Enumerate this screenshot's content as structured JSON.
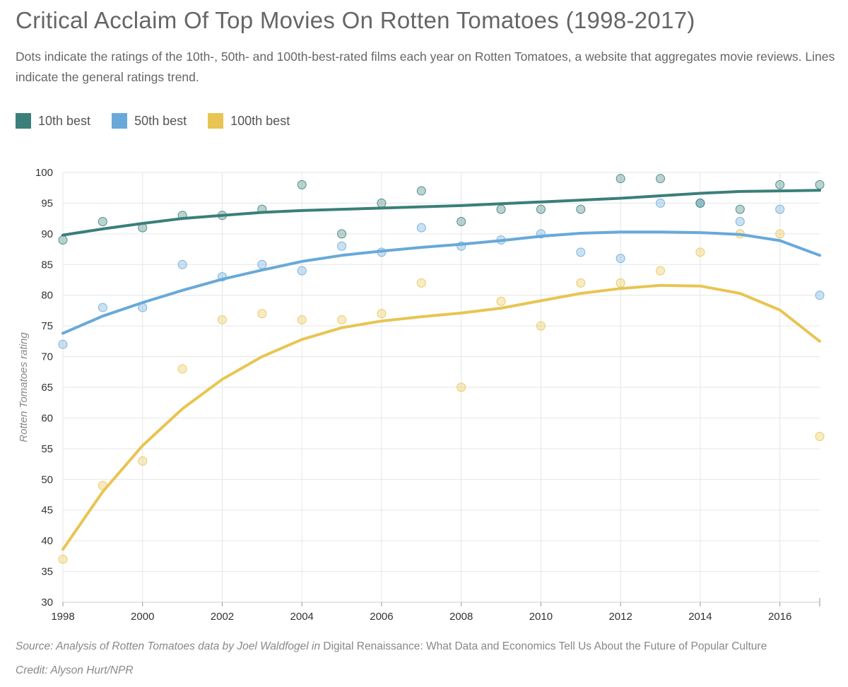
{
  "title": "Critical Acclaim Of Top Movies On Rotten Tomatoes (1998-2017)",
  "subtitle": "Dots indicate the ratings of the 10th-, 50th- and 100th-best-rated films each year on Rotten Tomatoes, a website that aggregates movie reviews. Lines indicate the general ratings trend.",
  "legend": [
    {
      "label": "10th best",
      "color": "#3a7f79"
    },
    {
      "label": "50th best",
      "color": "#68a9d9"
    },
    {
      "label": "100th best",
      "color": "#e8c553"
    }
  ],
  "source": {
    "prefix": "Source: Analysis of Rotten Tomatoes data by Joel Waldfogel in ",
    "book": "Digital Renaissance: What Data and Economics Tell Us About the Future of Popular Culture"
  },
  "credit": "Credit: Alyson Hurt/NPR",
  "chart_data": {
    "type": "scatter",
    "title": "Critical Acclaim Of Top Movies On Rotten Tomatoes (1998-2017)",
    "xlabel": "",
    "ylabel": "Rotten Tomatoes rating",
    "xlim": [
      1998,
      2017
    ],
    "ylim": [
      30,
      100
    ],
    "x_ticks": [
      1998,
      2000,
      2002,
      2004,
      2006,
      2008,
      2010,
      2012,
      2014,
      2016
    ],
    "y_ticks": [
      30,
      35,
      40,
      45,
      50,
      55,
      60,
      65,
      70,
      75,
      80,
      85,
      90,
      95,
      100
    ],
    "grid": true,
    "x": [
      1998,
      1999,
      2000,
      2001,
      2002,
      2003,
      2004,
      2005,
      2006,
      2007,
      2008,
      2009,
      2010,
      2011,
      2012,
      2013,
      2014,
      2015,
      2016,
      2017
    ],
    "series": [
      {
        "name": "10th best",
        "color": "#3a7f79",
        "values": [
          89,
          92,
          91,
          93,
          93,
          94,
          98,
          90,
          95,
          97,
          92,
          94,
          94,
          94,
          99,
          99,
          95,
          94,
          98,
          98
        ],
        "trend": [
          89.8,
          90.8,
          91.7,
          92.5,
          93.0,
          93.5,
          93.8,
          94.0,
          94.2,
          94.4,
          94.6,
          94.9,
          95.2,
          95.5,
          95.8,
          96.2,
          96.6,
          96.9,
          97.0,
          97.1
        ]
      },
      {
        "name": "50th best",
        "color": "#68a9d9",
        "values": [
          72,
          78,
          78,
          85,
          83,
          85,
          84,
          88,
          87,
          91,
          88,
          89,
          90,
          87,
          86,
          95,
          95,
          92,
          94,
          80
        ],
        "trend": [
          73.8,
          76.6,
          78.8,
          80.8,
          82.6,
          84.1,
          85.5,
          86.5,
          87.2,
          87.8,
          88.3,
          88.9,
          89.6,
          90.1,
          90.3,
          90.3,
          90.2,
          89.9,
          88.9,
          86.5
        ]
      },
      {
        "name": "100th best",
        "color": "#e8c553",
        "values": [
          37,
          49,
          53,
          68,
          76,
          77,
          76,
          76,
          77,
          82,
          65,
          79,
          75,
          82,
          82,
          84,
          87,
          90,
          90,
          57
        ],
        "trend": [
          38.6,
          48.0,
          55.5,
          61.5,
          66.3,
          70.0,
          72.8,
          74.7,
          75.8,
          76.5,
          77.1,
          77.9,
          79.1,
          80.3,
          81.1,
          81.6,
          81.5,
          80.3,
          77.6,
          72.5
        ]
      }
    ]
  }
}
